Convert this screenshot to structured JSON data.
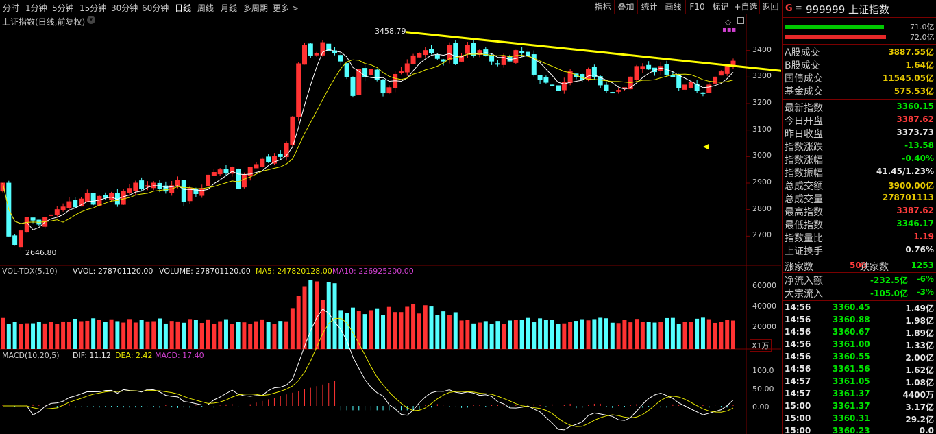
{
  "toolbar": {
    "periods": [
      "分时",
      "1分钟",
      "5分钟",
      "15分钟",
      "30分钟",
      "60分钟",
      "日线",
      "周线",
      "月线",
      "多周期",
      "更多 >"
    ],
    "active_period": "日线",
    "buttons": [
      "指标",
      "叠加",
      "统计",
      "画线",
      "F10",
      "标记",
      "+自选",
      "返回"
    ]
  },
  "chart_title": "上证指数(日线,前复权)",
  "price_axis": [
    "3400",
    "3300",
    "3200",
    "3100",
    "3000",
    "2900",
    "2800",
    "2700"
  ],
  "annotations": {
    "high_label": "3458.79",
    "low_label": "2646.80"
  },
  "vol": {
    "title": "VOL-TDX(5,10)",
    "vvol": "VVOL: 278701120.00",
    "volume": "VOLUME: 278701120.00",
    "ma5": "MA5: 247820128.00",
    "ma10": "MA10: 226925200.00",
    "axis": [
      "60000",
      "40000",
      "20000"
    ],
    "unit": "X1万"
  },
  "macd": {
    "title": "MACD(10,20,5)",
    "dif": "DIF: 11.12",
    "dea": "DEA: 2.42",
    "macd": "MACD: 17.40",
    "axis": [
      "100.0",
      "50.00",
      "0.00"
    ]
  },
  "quote": {
    "header_g": "G",
    "header_code": "999999 上证指数",
    "bar1_value": "71.0亿",
    "bar2_value": "72.0亿",
    "rows1": [
      {
        "k": "A股成交",
        "v": "3887.55亿",
        "c": "yel"
      },
      {
        "k": "B股成交",
        "v": "1.64亿",
        "c": "yel"
      },
      {
        "k": "国债成交",
        "v": "11545.05亿",
        "c": "yel"
      },
      {
        "k": "基金成交",
        "v": "575.53亿",
        "c": "yel"
      }
    ],
    "rows2": [
      {
        "k": "最新指数",
        "v": "3360.15",
        "c": "green"
      },
      {
        "k": "今日开盘",
        "v": "3387.62",
        "c": "red"
      },
      {
        "k": "昨日收盘",
        "v": "3373.73",
        "c": "white"
      },
      {
        "k": "指数涨跌",
        "v": "-13.58",
        "c": "green"
      },
      {
        "k": "指数涨幅",
        "v": "-0.40%",
        "c": "green"
      },
      {
        "k": "指数振幅",
        "v": "41.45/1.23%",
        "c": "white"
      },
      {
        "k": "总成交额",
        "v": "3900.00亿",
        "c": "yel"
      },
      {
        "k": "总成交量",
        "v": "278701113",
        "c": "yel"
      },
      {
        "k": "最高指数",
        "v": "3387.62",
        "c": "red"
      },
      {
        "k": "最低指数",
        "v": "3346.17",
        "c": "green"
      },
      {
        "k": "指数量比",
        "v": "1.19",
        "c": "red"
      },
      {
        "k": "上证换手",
        "v": "0.76%",
        "c": "white"
      }
    ],
    "up_label": "涨家数",
    "up_value": "500",
    "down_label": "跌家数",
    "down_value": "1253",
    "flows": [
      {
        "k": "净流入额",
        "v": "-232.5亿",
        "p": "-6%"
      },
      {
        "k": "大宗流入",
        "v": "-105.0亿",
        "p": "-3%"
      }
    ],
    "ticks": [
      {
        "t": "14:56",
        "p": "3360.45",
        "v": "1.49亿"
      },
      {
        "t": "14:56",
        "p": "3360.88",
        "v": "1.98亿"
      },
      {
        "t": "14:56",
        "p": "3360.67",
        "v": "1.89亿"
      },
      {
        "t": "14:56",
        "p": "3361.00",
        "v": "1.33亿"
      },
      {
        "t": "14:56",
        "p": "3360.55",
        "v": "2.00亿"
      },
      {
        "t": "14:56",
        "p": "3361.56",
        "v": "1.62亿"
      },
      {
        "t": "14:57",
        "p": "3361.05",
        "v": "1.08亿"
      },
      {
        "t": "14:57",
        "p": "3361.37",
        "v": "4400万"
      },
      {
        "t": "15:00",
        "p": "3361.37",
        "v": "3.17亿"
      },
      {
        "t": "15:00",
        "p": "3360.31",
        "v": "29.2亿"
      },
      {
        "t": "15:00",
        "p": "3360.23",
        "v": "0.0"
      }
    ]
  },
  "colors": {
    "up": "#ff3232",
    "down": "#54ffff",
    "trendline": "#ffff00",
    "ma_white": "#ffffff",
    "ma_yellow": "#e6e600",
    "ma_magenta": "#d040d0"
  },
  "chart_data": {
    "type": "candlestick",
    "price_range": [
      2600,
      3500
    ],
    "closes": [
      2900,
      2700,
      2668,
      2720,
      2770,
      2760,
      2745,
      2770,
      2780,
      2800,
      2810,
      2830,
      2810,
      2840,
      2860,
      2820,
      2850,
      2845,
      2860,
      2820,
      2870,
      2880,
      2900,
      2880,
      2890,
      2900,
      2880,
      2870,
      2890,
      2910,
      2830,
      2880,
      2860,
      2880,
      2930,
      2940,
      2950,
      2940,
      2960,
      2880,
      2930,
      2960,
      2970,
      2990,
      2980,
      3000,
      3000,
      3050,
      3150,
      3350,
      3420,
      3380,
      3390,
      3430,
      3400,
      3390,
      3360,
      3300,
      3230,
      3330,
      3300,
      3330,
      3290,
      3240,
      3260,
      3310,
      3320,
      3350,
      3380,
      3390,
      3400,
      3390,
      3370,
      3360,
      3420,
      3350,
      3380,
      3420,
      3380,
      3400,
      3380,
      3360,
      3350,
      3380,
      3360,
      3400,
      3390,
      3380,
      3310,
      3290,
      3280,
      3270,
      3250,
      3280,
      3320,
      3300,
      3290,
      3330,
      3300,
      3270,
      3250,
      3240,
      3250,
      3260,
      3300,
      3340,
      3340,
      3330,
      3320,
      3340,
      3310,
      3300,
      3260,
      3270,
      3280,
      3250,
      3240,
      3270,
      3300,
      3320,
      3340,
      3360
    ],
    "trendline": {
      "from": [
        3470,
        "day 69"
      ],
      "to": [
        3310,
        "right edge"
      ]
    }
  }
}
